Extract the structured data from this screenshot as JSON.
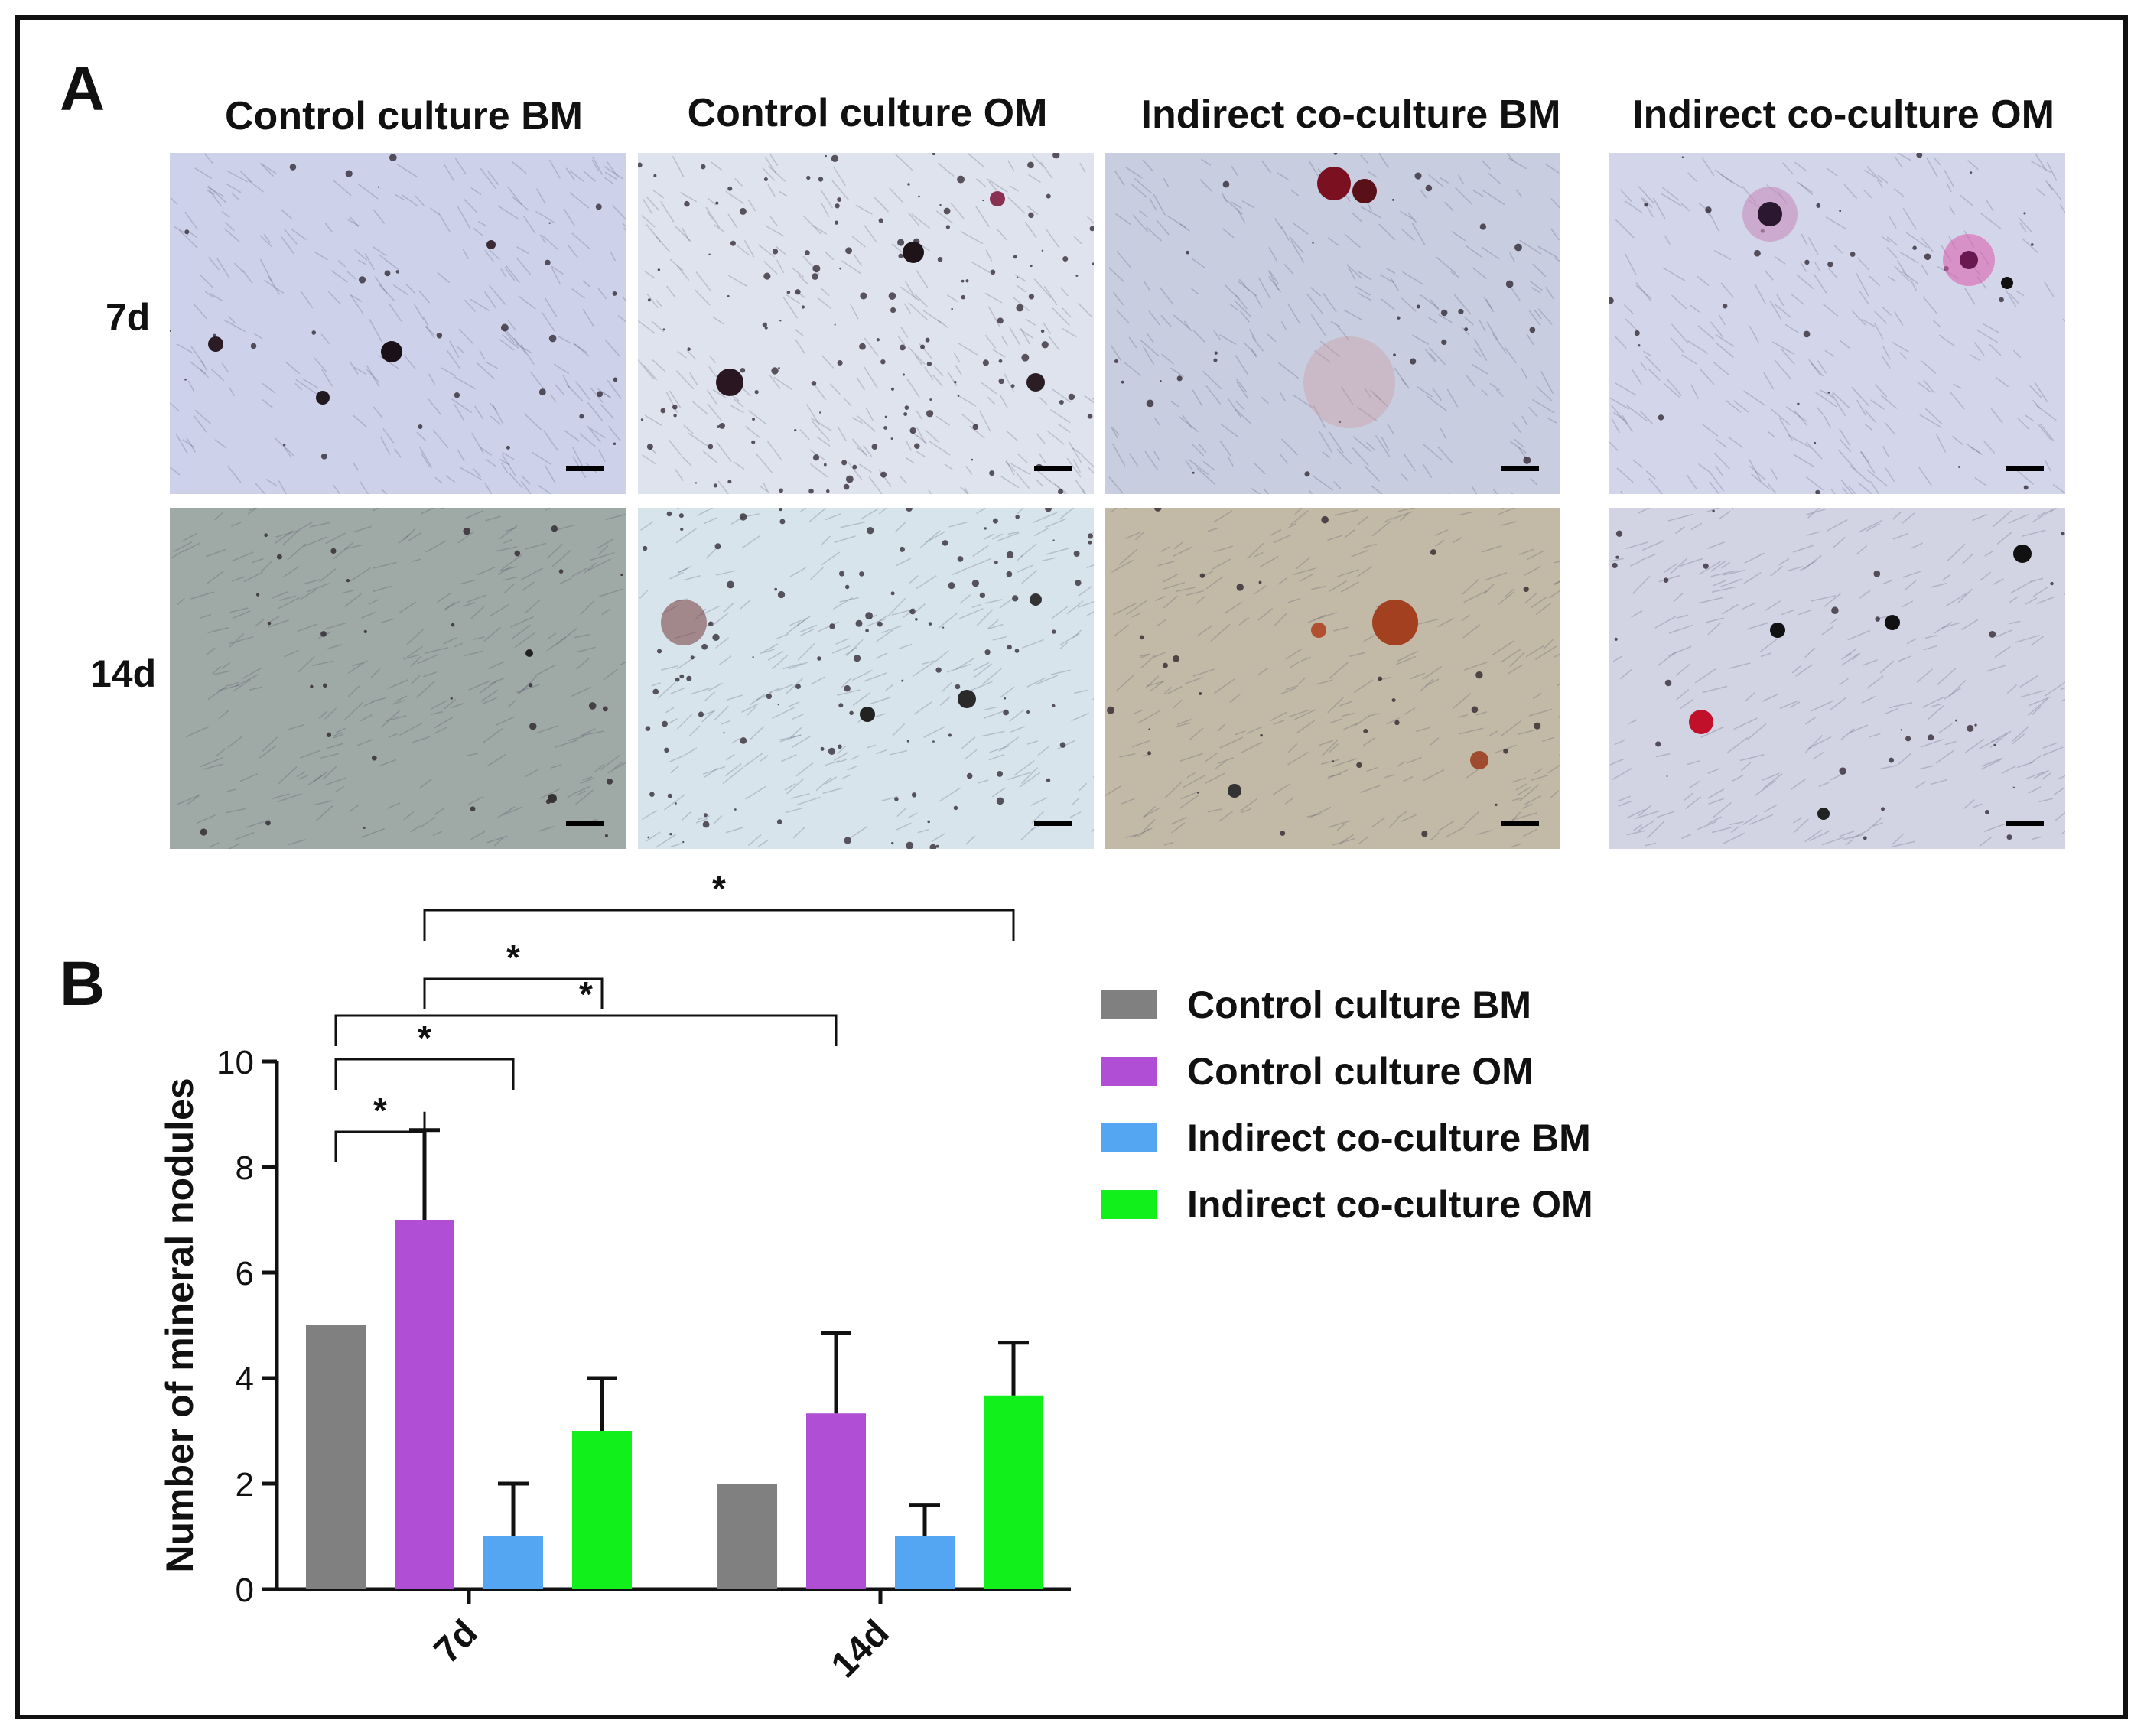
{
  "panel_a": {
    "letter": "A",
    "columns": [
      {
        "title": "Control culture BM",
        "tone": "#cdd2ea"
      },
      {
        "title": "Control culture OM",
        "tone": "#dfe3ee"
      },
      {
        "title": "Indirect co-culture BM",
        "tone": "#c8cde0"
      },
      {
        "title": "Indirect co-culture OM",
        "tone": "#d3d6ea"
      }
    ],
    "rows": [
      {
        "label": "7d"
      },
      {
        "label": "14d"
      }
    ],
    "tones_14d": [
      "#9fa9a5",
      "#d7e4ec",
      "#c2baa6",
      "#d2d4e4"
    ]
  },
  "panel_b": {
    "letter": "B"
  },
  "chart_data": {
    "type": "bar",
    "categories": [
      "7d",
      "14d"
    ],
    "series": [
      {
        "name": "Control culture BM",
        "color": "#808080",
        "values": [
          5,
          2
        ],
        "errors": [
          0,
          0
        ]
      },
      {
        "name": "Control culture OM",
        "color": "#b04fd6",
        "values": [
          7,
          3.33
        ],
        "errors": [
          1.7,
          1.53
        ]
      },
      {
        "name": "Indirect co-culture BM",
        "color": "#55a6f2",
        "values": [
          1,
          1
        ],
        "errors": [
          1,
          0.6
        ]
      },
      {
        "name": "Indirect co-culture OM",
        "color": "#11f01b",
        "values": [
          3,
          3.67
        ],
        "errors": [
          1,
          1
        ]
      }
    ],
    "ylabel": "Number of mineral nodules",
    "ylim": [
      0,
      10
    ],
    "yticks": [
      0,
      2,
      4,
      6,
      8,
      10
    ],
    "significance": [
      {
        "from": [
          0,
          0
        ],
        "to": [
          0,
          1
        ],
        "label": "*"
      },
      {
        "from": [
          0,
          0
        ],
        "to": [
          1,
          1
        ],
        "label": "*"
      },
      {
        "from": [
          0,
          1
        ],
        "to": [
          1,
          3
        ],
        "label": "*"
      },
      {
        "from": [
          0,
          0
        ],
        "to": [
          0,
          2
        ],
        "label": "*"
      },
      {
        "from": [
          0,
          1
        ],
        "to": [
          0,
          3
        ],
        "label": "*"
      }
    ],
    "legend_position": "right"
  }
}
